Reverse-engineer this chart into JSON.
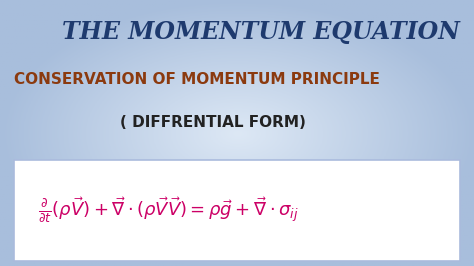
{
  "title": "THE MOMENTUM EQUATION",
  "subtitle": "CONSERVATION OF MOMENTUM PRINCIPLE",
  "subtitle2": "( DIFFRENTIAL FORM)",
  "title_color": "#1e3a6e",
  "subtitle_color": "#8B3A0F",
  "subtitle2_color": "#222222",
  "equation_color": "#cc0066",
  "bg_center_color": "#dde8f5",
  "bg_edge_color": "#a8bedc",
  "box_facecolor": "#ffffff",
  "box_edgecolor": "#aabbdd",
  "title_fontsize": 17,
  "subtitle_fontsize": 11,
  "subtitle2_fontsize": 11,
  "equation_fontsize": 13
}
